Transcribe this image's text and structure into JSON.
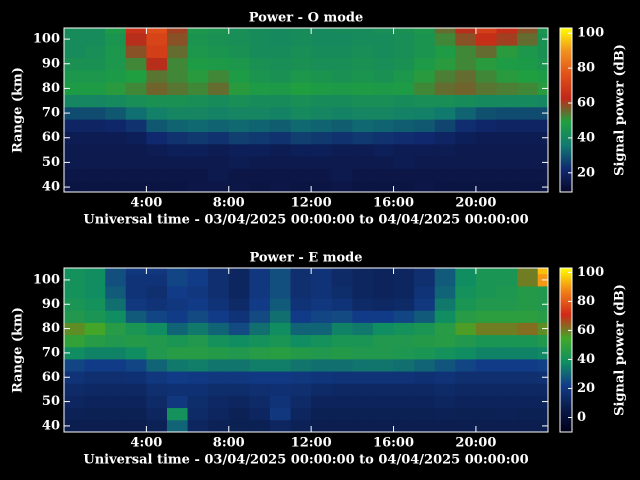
{
  "chart_data": [
    {
      "type": "heatmap",
      "title": "Power - O mode",
      "xlabel": "Universal time - 03/04/2025 00:00:00 to 04/04/2025 00:00:00",
      "ylabel": "Range (km)",
      "colorbar_label": "Signal power (dB)",
      "x_bins": [
        0,
        1,
        2,
        3,
        4,
        5,
        6,
        7,
        8,
        9,
        10,
        11,
        12,
        13,
        14,
        15,
        16,
        17,
        18,
        19,
        20,
        21,
        22,
        23,
        24
      ],
      "y_bins": [
        37.5,
        42.5,
        47.5,
        52.5,
        57.5,
        62.5,
        67.5,
        72.5,
        77.5,
        82.5,
        87.5,
        92.5,
        97.5,
        102.5,
        107.5
      ],
      "values": [
        [
          14,
          14,
          14,
          14,
          14,
          14,
          15,
          15,
          15,
          14,
          15,
          14,
          14,
          15,
          14,
          14,
          14,
          15,
          14,
          14,
          14,
          14,
          14,
          14
        ],
        [
          15,
          15,
          15,
          15,
          15,
          15,
          15,
          16,
          15,
          15,
          15,
          15,
          15,
          16,
          15,
          15,
          15,
          15,
          15,
          15,
          15,
          15,
          15,
          15
        ],
        [
          16,
          16,
          16,
          16,
          16,
          16,
          16,
          16,
          17,
          16,
          16,
          16,
          16,
          16,
          16,
          16,
          17,
          16,
          16,
          16,
          16,
          16,
          16,
          16
        ],
        [
          16,
          16,
          16,
          16,
          17,
          18,
          18,
          17,
          18,
          18,
          17,
          18,
          18,
          17,
          17,
          18,
          17,
          17,
          17,
          16,
          16,
          16,
          16,
          16
        ],
        [
          17,
          17,
          17,
          18,
          22,
          24,
          25,
          24,
          26,
          25,
          24,
          26,
          25,
          24,
          25,
          24,
          23,
          22,
          20,
          18,
          17,
          17,
          17,
          17
        ],
        [
          20,
          20,
          21,
          24,
          30,
          32,
          33,
          32,
          33,
          32,
          31,
          33,
          32,
          31,
          33,
          32,
          31,
          30,
          27,
          23,
          21,
          20,
          20,
          20
        ],
        [
          28,
          28,
          30,
          34,
          38,
          40,
          40,
          39,
          40,
          40,
          39,
          41,
          40,
          39,
          40,
          40,
          39,
          38,
          36,
          32,
          29,
          28,
          28,
          28
        ],
        [
          40,
          40,
          41,
          43,
          44,
          44,
          43,
          42,
          43,
          42,
          42,
          43,
          42,
          42,
          43,
          43,
          42,
          43,
          43,
          42,
          41,
          41,
          41,
          40
        ],
        [
          48,
          48,
          50,
          52,
          56,
          54,
          52,
          55,
          50,
          48,
          47,
          49,
          48,
          47,
          48,
          47,
          48,
          52,
          55,
          56,
          54,
          53,
          52,
          50
        ],
        [
          46,
          46,
          47,
          49,
          54,
          52,
          50,
          52,
          48,
          45,
          44,
          46,
          45,
          44,
          45,
          44,
          46,
          50,
          53,
          55,
          52,
          50,
          49,
          48
        ],
        [
          44,
          44,
          46,
          52,
          62,
          52,
          48,
          47,
          46,
          44,
          43,
          44,
          43,
          43,
          44,
          43,
          44,
          47,
          50,
          52,
          50,
          48,
          47,
          45
        ],
        [
          42,
          43,
          46,
          58,
          70,
          55,
          46,
          45,
          44,
          42,
          42,
          43,
          42,
          42,
          43,
          42,
          43,
          45,
          48,
          52,
          55,
          50,
          46,
          44
        ],
        [
          42,
          42,
          45,
          62,
          72,
          58,
          45,
          44,
          43,
          42,
          41,
          42,
          41,
          41,
          42,
          42,
          43,
          45,
          52,
          58,
          65,
          60,
          55,
          44
        ],
        [
          42,
          42,
          47,
          66,
          75,
          60,
          46,
          45,
          43,
          42,
          41,
          42,
          41,
          42,
          42,
          43,
          44,
          46,
          55,
          62,
          70,
          64,
          58,
          45
        ]
      ],
      "xlim": [
        0,
        23.5
      ],
      "ylim": [
        38,
        104.5
      ],
      "xticks": [
        {
          "value": 4,
          "label": "4:00"
        },
        {
          "value": 8,
          "label": "8:00"
        },
        {
          "value": 12,
          "label": "12:00"
        },
        {
          "value": 16,
          "label": "16:00"
        },
        {
          "value": 20,
          "label": "20:00"
        }
      ],
      "yticks": [
        40,
        50,
        60,
        70,
        80,
        90,
        100
      ],
      "clim": [
        9,
        103
      ],
      "cticks": [
        20,
        40,
        60,
        80,
        100
      ],
      "colormap": [
        "#080828",
        "#102a70",
        "#107a70",
        "#20a040",
        "#c02818",
        "#e05018",
        "#f09020",
        "#ffff00"
      ]
    },
    {
      "type": "heatmap",
      "title": "Power - E mode",
      "xlabel": "Universal time - 03/04/2025 00:00:00 to 04/04/2025 00:00:00",
      "ylabel": "Range (km)",
      "colorbar_label": "Signal power (dB)",
      "x_bins": [
        0,
        1,
        2,
        3,
        4,
        5,
        6,
        7,
        8,
        9,
        10,
        11,
        12,
        13,
        14,
        15,
        16,
        17,
        18,
        19,
        20,
        21,
        22,
        23,
        24
      ],
      "y_bins": [
        37.5,
        42.5,
        47.5,
        52.5,
        57.5,
        62.5,
        67.5,
        72.5,
        77.5,
        82.5,
        87.5,
        92.5,
        97.5,
        102.5,
        107.5
      ],
      "values": [
        [
          8,
          8,
          8,
          8,
          10,
          30,
          12,
          10,
          9,
          9,
          12,
          10,
          8,
          8,
          8,
          8,
          8,
          8,
          8,
          8,
          8,
          8,
          8,
          8
        ],
        [
          10,
          9,
          9,
          9,
          12,
          40,
          14,
          12,
          10,
          12,
          20,
          12,
          9,
          9,
          9,
          9,
          9,
          9,
          10,
          9,
          9,
          10,
          9,
          9
        ],
        [
          12,
          11,
          11,
          11,
          14,
          20,
          15,
          13,
          12,
          14,
          18,
          14,
          11,
          11,
          11,
          11,
          11,
          11,
          12,
          11,
          11,
          11,
          11,
          11
        ],
        [
          14,
          13,
          13,
          13,
          16,
          17,
          17,
          15,
          15,
          16,
          17,
          16,
          14,
          13,
          13,
          13,
          13,
          13,
          14,
          13,
          13,
          13,
          13,
          13
        ],
        [
          18,
          16,
          16,
          17,
          20,
          22,
          21,
          20,
          20,
          21,
          21,
          20,
          19,
          18,
          18,
          18,
          18,
          17,
          18,
          16,
          16,
          16,
          16,
          17
        ],
        [
          24,
          22,
          22,
          24,
          30,
          34,
          35,
          33,
          33,
          35,
          35,
          33,
          32,
          32,
          33,
          33,
          32,
          30,
          27,
          24,
          22,
          22,
          22,
          23
        ],
        [
          38,
          36,
          36,
          38,
          44,
          46,
          46,
          45,
          44,
          46,
          47,
          45,
          44,
          45,
          44,
          44,
          43,
          42,
          40,
          38,
          36,
          36,
          36,
          37
        ],
        [
          50,
          46,
          44,
          45,
          44,
          42,
          44,
          40,
          38,
          40,
          42,
          38,
          40,
          42,
          42,
          44,
          44,
          45,
          46,
          44,
          42,
          42,
          42,
          44
        ],
        [
          58,
          55,
          46,
          42,
          38,
          30,
          34,
          30,
          25,
          32,
          38,
          30,
          30,
          36,
          34,
          38,
          40,
          42,
          46,
          56,
          60,
          60,
          62,
          58
        ],
        [
          44,
          42,
          38,
          28,
          24,
          22,
          25,
          22,
          18,
          25,
          32,
          22,
          24,
          25,
          22,
          22,
          24,
          28,
          38,
          46,
          48,
          48,
          48,
          46
        ],
        [
          42,
          40,
          32,
          20,
          18,
          20,
          22,
          18,
          14,
          22,
          28,
          18,
          20,
          18,
          14,
          13,
          14,
          20,
          34,
          42,
          44,
          44,
          45,
          44
        ],
        [
          40,
          38,
          28,
          18,
          16,
          22,
          20,
          16,
          12,
          20,
          26,
          16,
          18,
          15,
          12,
          11,
          12,
          18,
          30,
          40,
          42,
          43,
          45,
          44
        ],
        [
          40,
          38,
          26,
          18,
          18,
          24,
          22,
          16,
          12,
          20,
          26,
          16,
          18,
          14,
          12,
          11,
          12,
          16,
          28,
          38,
          42,
          42,
          60,
          90
        ],
        [
          40,
          38,
          26,
          20,
          20,
          24,
          22,
          16,
          12,
          20,
          26,
          16,
          18,
          14,
          12,
          11,
          12,
          16,
          28,
          38,
          42,
          42,
          60,
          95
        ]
      ],
      "xlim": [
        0,
        23.5
      ],
      "ylim": [
        37.5,
        104.9
      ],
      "xticks": [
        {
          "value": 4,
          "label": "4:00"
        },
        {
          "value": 8,
          "label": "8:00"
        },
        {
          "value": 12,
          "label": "12:00"
        },
        {
          "value": 16,
          "label": "16:00"
        },
        {
          "value": 20,
          "label": "20:00"
        }
      ],
      "yticks": [
        40,
        50,
        60,
        70,
        80,
        90,
        100
      ],
      "clim": [
        -10,
        103
      ],
      "cticks": [
        0,
        20,
        40,
        60,
        80,
        100
      ],
      "colormap": [
        "#000018",
        "#0a1a48",
        "#123c88",
        "#109060",
        "#40a828",
        "#d02818",
        "#f08018",
        "#ffff00"
      ]
    }
  ]
}
